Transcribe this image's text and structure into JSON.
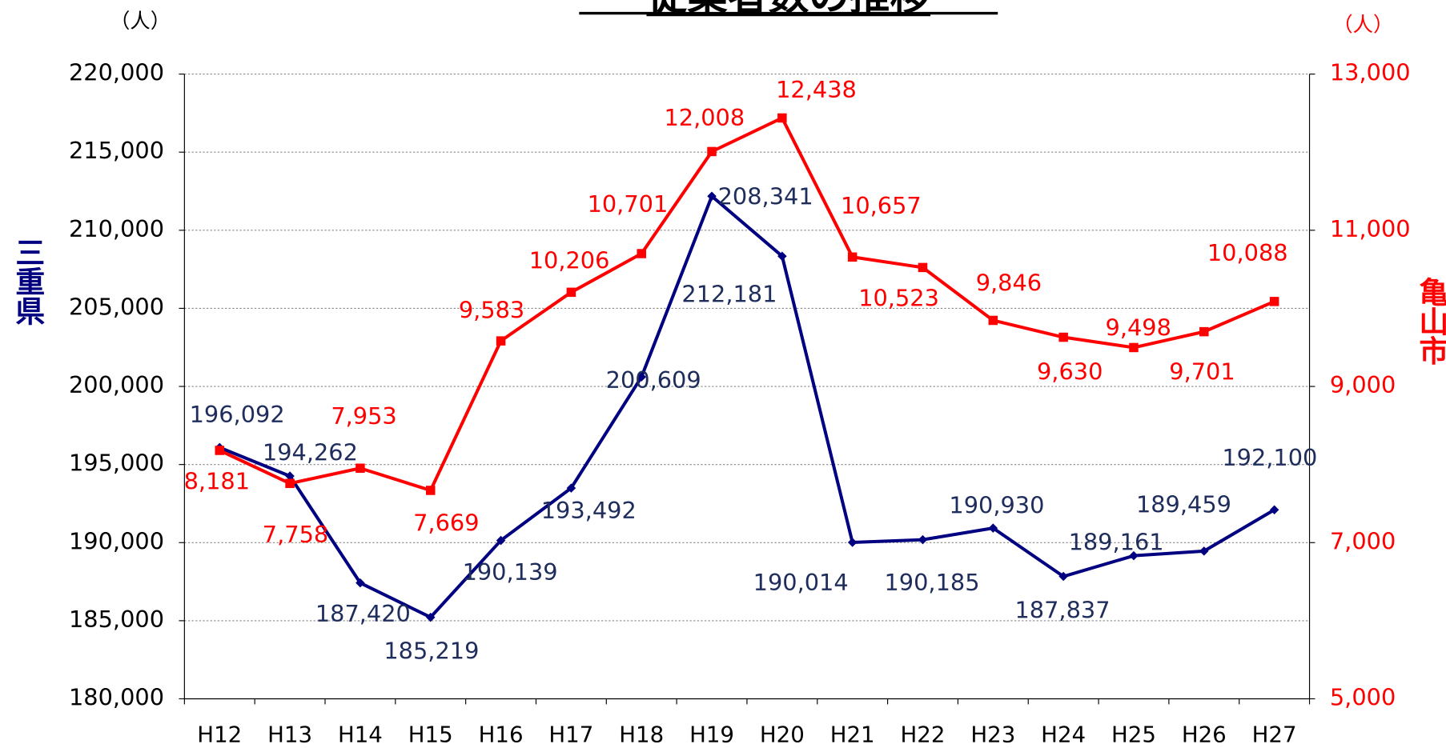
{
  "chart_data": {
    "type": "line",
    "title": "従業者数の推移",
    "ylabel": "三重県",
    "y2label": "亀山市",
    "yunit": "（人）",
    "y2unit": "（人）",
    "categories": [
      "H12",
      "H13",
      "H14",
      "H15",
      "H16",
      "H17",
      "H18",
      "H19",
      "H20",
      "H21",
      "H22",
      "H23",
      "H24",
      "H25",
      "H26",
      "H27"
    ],
    "ylim": [
      180000,
      220000
    ],
    "yticks": [
      {
        "value": 180000,
        "label": "180,000"
      },
      {
        "value": 185000,
        "label": "185,000"
      },
      {
        "value": 190000,
        "label": "190,000"
      },
      {
        "value": 195000,
        "label": "195,000"
      },
      {
        "value": 200000,
        "label": "200,000"
      },
      {
        "value": 205000,
        "label": "205,000"
      },
      {
        "value": 210000,
        "label": "210,000"
      },
      {
        "value": 215000,
        "label": "215,000"
      },
      {
        "value": 220000,
        "label": "220,000"
      }
    ],
    "y2lim": [
      5000,
      13000
    ],
    "y2ticks": [
      {
        "value": 5000,
        "label": "5,000"
      },
      {
        "value": 7000,
        "label": "7,000"
      },
      {
        "value": 9000,
        "label": "9,000"
      },
      {
        "value": 11000,
        "label": "11,000"
      },
      {
        "value": 13000,
        "label": "13,000"
      }
    ],
    "grid": true,
    "series": [
      {
        "color": "#000080",
        "marker": "diamond",
        "values": [
          196092,
          194262,
          187420,
          185219,
          190139,
          193492,
          200609,
          212181,
          208341,
          190014,
          190185,
          190930,
          187837,
          189161,
          189459,
          192100
        ],
        "value_labels": [
          "196,092",
          "194,262",
          "187,420",
          "185,219",
          "190,139",
          "193,492",
          "200,609",
          "212,181",
          "208,341",
          "190,014",
          "190,185",
          "190,930",
          "187,837",
          "189,161",
          "189,459",
          "192,100"
        ]
      },
      {
        "color": "#ff0000",
        "marker": "square",
        "axis": "y2",
        "values": [
          8181,
          7758,
          7953,
          7669,
          9583,
          10206,
          10701,
          12008,
          12438,
          10657,
          10523,
          9846,
          9630,
          9498,
          9701,
          10088
        ],
        "value_labels": [
          "8,181",
          "7,758",
          "7,953",
          "7,669",
          "9,583",
          "10,206",
          "10,701",
          "12,008",
          "12,438",
          "10,657",
          "10,523",
          "9,846",
          "9,630",
          "9,498",
          "9,701",
          "10,088"
        ]
      }
    ]
  }
}
